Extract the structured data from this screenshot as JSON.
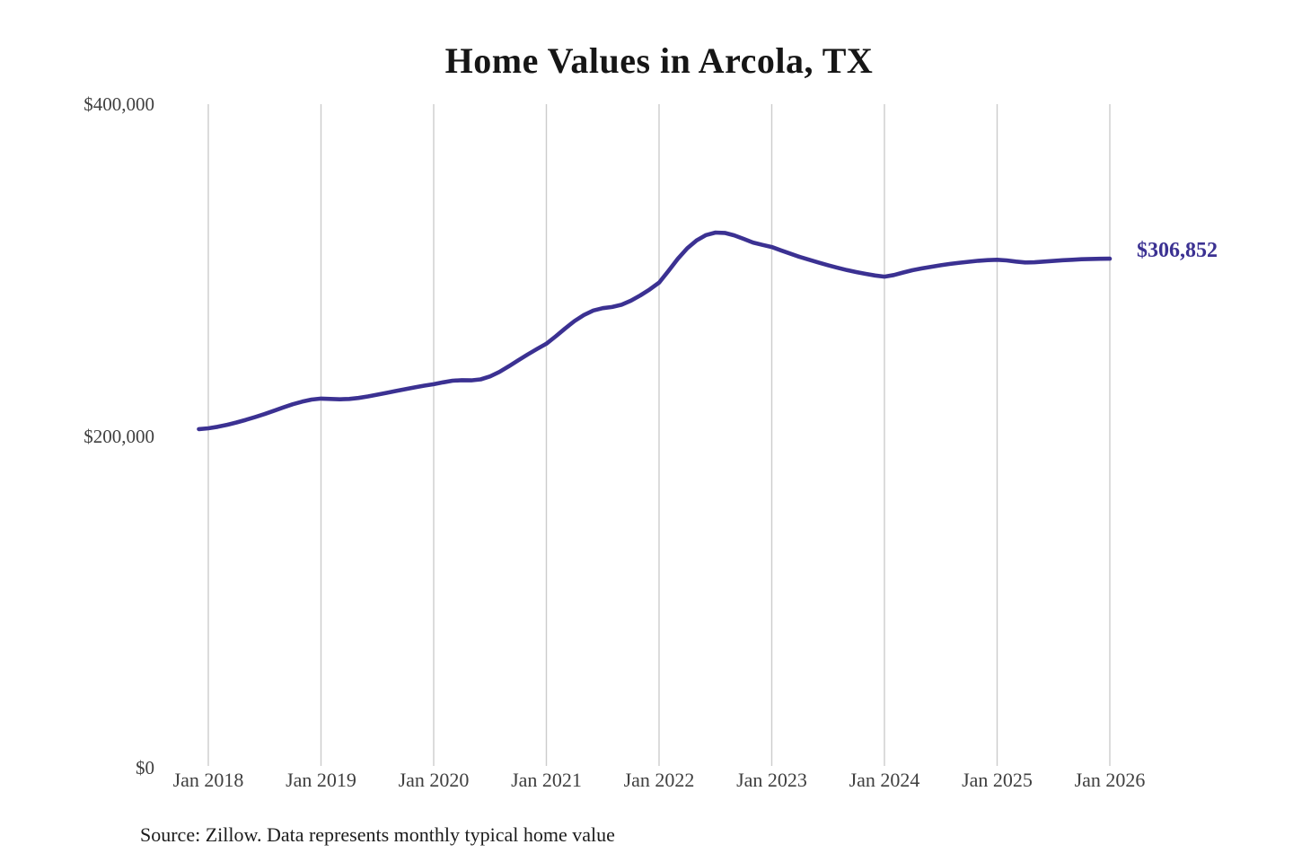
{
  "title": "Home Values in Arcola, TX",
  "end_label": "$306,852",
  "source_note": "Source: Zillow. Data represents monthly typical home value",
  "colors": {
    "line": "#3b3192",
    "end_label": "#3b3192",
    "grid": "#cccccc",
    "title": "#161616",
    "axis_text": "#3f3f3f",
    "source_text": "#1c1c1c",
    "background": "#ffffff"
  },
  "chart_data": {
    "type": "line",
    "title": "Home Values in Arcola, TX",
    "xlabel": "",
    "ylabel": "",
    "ylim": [
      0,
      400000
    ],
    "grid": "vertical-only",
    "legend_position": "none",
    "y_ticks": [
      {
        "value": 0,
        "label": "$0"
      },
      {
        "value": 200000,
        "label": "$200,000"
      },
      {
        "value": 400000,
        "label": "$400,000"
      }
    ],
    "x_ticks": [
      "Jan 2018",
      "Jan 2019",
      "Jan 2020",
      "Jan 2021",
      "Jan 2022",
      "Jan 2023",
      "Jan 2024",
      "Jan 2025",
      "Jan 2026"
    ],
    "annotation": {
      "text": "$306,852",
      "position": "end-of-line"
    },
    "x": [
      "Dec 2017",
      "Jan 2018",
      "Feb 2018",
      "Mar 2018",
      "Apr 2018",
      "May 2018",
      "Jun 2018",
      "Jul 2018",
      "Aug 2018",
      "Sep 2018",
      "Oct 2018",
      "Nov 2018",
      "Dec 2018",
      "Jan 2019",
      "Feb 2019",
      "Mar 2019",
      "Apr 2019",
      "May 2019",
      "Jun 2019",
      "Jul 2019",
      "Aug 2019",
      "Sep 2019",
      "Oct 2019",
      "Nov 2019",
      "Dec 2019",
      "Jan 2020",
      "Feb 2020",
      "Mar 2020",
      "Apr 2020",
      "May 2020",
      "Jun 2020",
      "Jul 2020",
      "Aug 2020",
      "Sep 2020",
      "Oct 2020",
      "Nov 2020",
      "Dec 2020",
      "Jan 2021",
      "Feb 2021",
      "Mar 2021",
      "Apr 2021",
      "May 2021",
      "Jun 2021",
      "Jul 2021",
      "Aug 2021",
      "Sep 2021",
      "Oct 2021",
      "Nov 2021",
      "Dec 2021",
      "Jan 2022",
      "Feb 2022",
      "Mar 2022",
      "Apr 2022",
      "May 2022",
      "Jun 2022",
      "Jul 2022",
      "Aug 2022",
      "Sep 2022",
      "Oct 2022",
      "Nov 2022",
      "Dec 2022",
      "Jan 2023",
      "Feb 2023",
      "Mar 2023",
      "Apr 2023",
      "May 2023",
      "Jun 2023",
      "Jul 2023",
      "Aug 2023",
      "Sep 2023",
      "Oct 2023",
      "Nov 2023",
      "Dec 2023",
      "Jan 2024",
      "Feb 2024",
      "Mar 2024",
      "Apr 2024",
      "May 2024",
      "Jun 2024",
      "Jul 2024",
      "Aug 2024",
      "Sep 2024",
      "Oct 2024",
      "Nov 2024",
      "Dec 2024",
      "Jan 2025",
      "Feb 2025",
      "Mar 2025",
      "Apr 2025",
      "May 2025",
      "Jun 2025",
      "Jul 2025",
      "Aug 2025",
      "Sep 2025",
      "Oct 2025",
      "Nov 2025",
      "Dec 2025",
      "Jan 2026"
    ],
    "series": [
      {
        "name": "Monthly typical home value",
        "values": [
          204100,
          204600,
          205500,
          206700,
          208100,
          209700,
          211400,
          213200,
          215200,
          217200,
          219100,
          220700,
          221900,
          222500,
          222300,
          222100,
          222300,
          222900,
          223800,
          224900,
          226000,
          227100,
          228200,
          229300,
          230300,
          231200,
          232300,
          233300,
          233600,
          233500,
          234100,
          235900,
          238600,
          242000,
          245600,
          249100,
          252400,
          255600,
          260100,
          264800,
          269300,
          272900,
          275600,
          277000,
          277700,
          279100,
          281500,
          284700,
          288300,
          292400,
          299500,
          306800,
          313100,
          317900,
          321100,
          322600,
          322400,
          320900,
          318800,
          316600,
          315200,
          313900,
          311800,
          309800,
          307900,
          306200,
          304500,
          302900,
          301400,
          300000,
          298800,
          297700,
          296700,
          296000,
          297000,
          298500,
          299900,
          301000,
          302000,
          302900,
          303700,
          304400,
          305000,
          305600,
          306000,
          306200,
          305800,
          305100,
          304600,
          304700,
          305100,
          305500,
          305900,
          306200,
          306500,
          306700,
          306800,
          306852
        ]
      }
    ]
  }
}
